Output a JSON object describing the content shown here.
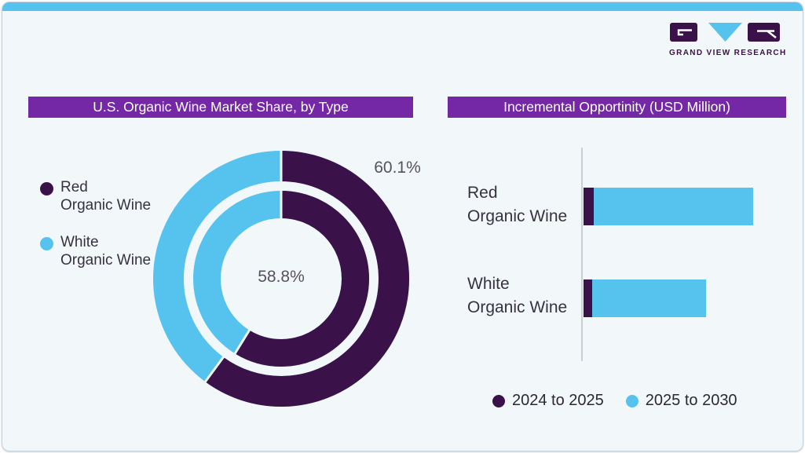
{
  "page": {
    "brand_caption": "GRAND VIEW RESEARCH"
  },
  "colors": {
    "accent_purple": "#7428A6",
    "dark_purple": "#3A1149",
    "sky_blue": "#56C3EF",
    "card_bg": "#F2F7FA",
    "text_dark": "#36323F",
    "text_gray": "#56525E",
    "axis_gray": "#C9CFD6"
  },
  "donut_panel": {
    "title": "U.S. Organic Wine Market Share, by Type",
    "legend": [
      {
        "name": "Red Organic Wine",
        "lines": [
          "Red",
          "Organic Wine"
        ],
        "color": "#3A1149"
      },
      {
        "name": "White Organic Wine",
        "lines": [
          "White",
          "Organic Wine"
        ],
        "color": "#56C3EF"
      }
    ],
    "outer_label": "60.1%",
    "inner_label": "58.8%"
  },
  "bar_panel": {
    "title": "Incremental Opportinity (USD Million)",
    "categories": [
      {
        "name": "Red Organic Wine",
        "lines": [
          "Red",
          "Organic Wine"
        ]
      },
      {
        "name": "White Organic Wine",
        "lines": [
          "White",
          "Organic Wine"
        ]
      }
    ],
    "legend": [
      {
        "label": "2024 to 2025",
        "color": "#3A1149"
      },
      {
        "label": "2025 to 2030",
        "color": "#56C3EF"
      }
    ]
  },
  "chart_data": [
    {
      "type": "pie",
      "subtype": "double_ring_donut",
      "title": "U.S. Organic Wine Market Share, by Type",
      "categories": [
        "Red Organic Wine",
        "White Organic Wine"
      ],
      "rings": [
        {
          "name": "outer",
          "values": [
            60.1,
            39.9
          ],
          "shown_label": "60.1%"
        },
        {
          "name": "inner",
          "values": [
            58.8,
            41.2
          ],
          "shown_label": "58.8%"
        }
      ],
      "colors": [
        "#3A1149",
        "#56C3EF"
      ],
      "start_angle_deg": 0,
      "direction": "clockwise",
      "legend_position": "left"
    },
    {
      "type": "bar",
      "subtype": "horizontal_stacked",
      "title": "Incremental Opportinity (USD Million)",
      "categories": [
        "Red Organic Wine",
        "White Organic Wine"
      ],
      "series": [
        {
          "name": "2024 to 2025",
          "values": [
            6,
            5
          ],
          "color": "#3A1149"
        },
        {
          "name": "2025 to 2030",
          "values": [
            94,
            67
          ],
          "color": "#56C3EF"
        }
      ],
      "value_axis_note": "no tick labels shown; values estimated in relative units, longest bar = 100",
      "grid": false,
      "legend_position": "bottom"
    }
  ]
}
